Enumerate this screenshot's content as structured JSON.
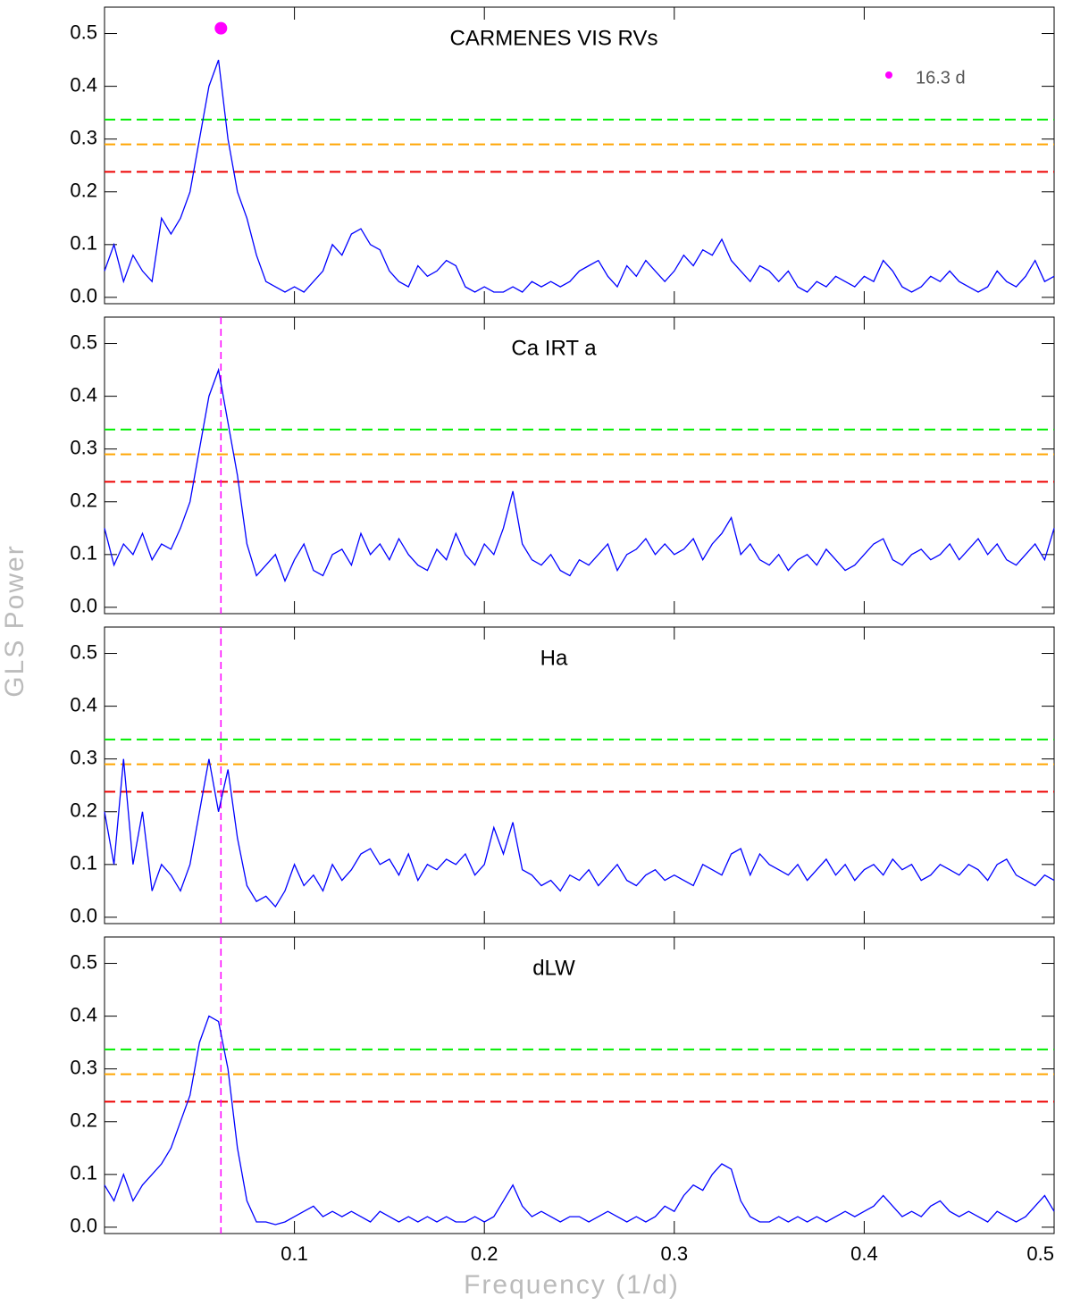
{
  "xlabel": "Frequency (1/d)",
  "ylabel": "GLS Power",
  "chart_data": [
    {
      "type": "line",
      "title": "CARMENES VIS RVs",
      "color": "#0000ff",
      "x": [
        0,
        0.005,
        0.01,
        0.015,
        0.02,
        0.025,
        0.03,
        0.035,
        0.04,
        0.045,
        0.05,
        0.055,
        0.06,
        0.065,
        0.07,
        0.075,
        0.08,
        0.085,
        0.09,
        0.095,
        0.1,
        0.105,
        0.11,
        0.115,
        0.12,
        0.125,
        0.13,
        0.135,
        0.14,
        0.145,
        0.15,
        0.155,
        0.16,
        0.165,
        0.17,
        0.175,
        0.18,
        0.185,
        0.19,
        0.195,
        0.2,
        0.205,
        0.21,
        0.215,
        0.22,
        0.225,
        0.23,
        0.235,
        0.24,
        0.245,
        0.25,
        0.255,
        0.26,
        0.265,
        0.27,
        0.275,
        0.28,
        0.285,
        0.29,
        0.295,
        0.3,
        0.305,
        0.31,
        0.315,
        0.32,
        0.325,
        0.33,
        0.335,
        0.34,
        0.345,
        0.35,
        0.355,
        0.36,
        0.365,
        0.37,
        0.375,
        0.38,
        0.385,
        0.39,
        0.395,
        0.4,
        0.405,
        0.41,
        0.415,
        0.42,
        0.425,
        0.43,
        0.435,
        0.44,
        0.445,
        0.45,
        0.455,
        0.46,
        0.465,
        0.47,
        0.475,
        0.48,
        0.485,
        0.49,
        0.495,
        0.5
      ],
      "values": [
        0.05,
        0.1,
        0.03,
        0.08,
        0.05,
        0.03,
        0.15,
        0.12,
        0.15,
        0.2,
        0.3,
        0.4,
        0.45,
        0.3,
        0.2,
        0.15,
        0.08,
        0.03,
        0.02,
        0.01,
        0.02,
        0.01,
        0.03,
        0.05,
        0.1,
        0.08,
        0.12,
        0.13,
        0.1,
        0.09,
        0.05,
        0.03,
        0.02,
        0.06,
        0.04,
        0.05,
        0.07,
        0.06,
        0.02,
        0.01,
        0.02,
        0.01,
        0.01,
        0.02,
        0.01,
        0.03,
        0.02,
        0.03,
        0.02,
        0.03,
        0.05,
        0.06,
        0.07,
        0.04,
        0.02,
        0.06,
        0.04,
        0.07,
        0.05,
        0.03,
        0.05,
        0.08,
        0.06,
        0.09,
        0.08,
        0.11,
        0.07,
        0.05,
        0.03,
        0.06,
        0.05,
        0.03,
        0.05,
        0.02,
        0.01,
        0.03,
        0.02,
        0.04,
        0.03,
        0.02,
        0.04,
        0.03,
        0.07,
        0.05,
        0.02,
        0.01,
        0.02,
        0.04,
        0.03,
        0.05,
        0.03,
        0.02,
        0.01,
        0.02,
        0.05,
        0.03,
        0.02,
        0.04,
        0.07,
        0.03,
        0.04
      ],
      "hlines": [
        {
          "value": 0.337,
          "color": "#00ee00"
        },
        {
          "value": 0.29,
          "color": "#ffa500"
        },
        {
          "value": 0.238,
          "color": "#ee0000"
        }
      ],
      "marker": {
        "x": 0.0613,
        "y": 0.51,
        "color": "#ff00ff",
        "label": "16.3 d"
      },
      "xlim": [
        0,
        0.5
      ],
      "xticks": [
        0.1,
        0.2,
        0.3,
        0.4,
        0.5
      ],
      "ylim": [
        -0.012,
        0.55
      ],
      "yticks": [
        {
          "value": 0,
          "label": "0.0"
        },
        0.1,
        0.2,
        0.3,
        0.4,
        0.5
      ]
    },
    {
      "type": "line",
      "title": "Ca IRT a",
      "color": "#0000ff",
      "x": [
        0,
        0.005,
        0.01,
        0.015,
        0.02,
        0.025,
        0.03,
        0.035,
        0.04,
        0.045,
        0.05,
        0.055,
        0.06,
        0.065,
        0.07,
        0.075,
        0.08,
        0.085,
        0.09,
        0.095,
        0.1,
        0.105,
        0.11,
        0.115,
        0.12,
        0.125,
        0.13,
        0.135,
        0.14,
        0.145,
        0.15,
        0.155,
        0.16,
        0.165,
        0.17,
        0.175,
        0.18,
        0.185,
        0.19,
        0.195,
        0.2,
        0.205,
        0.21,
        0.215,
        0.22,
        0.225,
        0.23,
        0.235,
        0.24,
        0.245,
        0.25,
        0.255,
        0.26,
        0.265,
        0.27,
        0.275,
        0.28,
        0.285,
        0.29,
        0.295,
        0.3,
        0.305,
        0.31,
        0.315,
        0.32,
        0.325,
        0.33,
        0.335,
        0.34,
        0.345,
        0.35,
        0.355,
        0.36,
        0.365,
        0.37,
        0.375,
        0.38,
        0.385,
        0.39,
        0.395,
        0.4,
        0.405,
        0.41,
        0.415,
        0.42,
        0.425,
        0.43,
        0.435,
        0.44,
        0.445,
        0.45,
        0.455,
        0.46,
        0.465,
        0.47,
        0.475,
        0.48,
        0.485,
        0.49,
        0.495,
        0.5
      ],
      "values": [
        0.15,
        0.08,
        0.12,
        0.1,
        0.14,
        0.09,
        0.12,
        0.11,
        0.15,
        0.2,
        0.3,
        0.4,
        0.45,
        0.35,
        0.25,
        0.12,
        0.06,
        0.08,
        0.1,
        0.05,
        0.09,
        0.12,
        0.07,
        0.06,
        0.1,
        0.11,
        0.08,
        0.14,
        0.1,
        0.12,
        0.09,
        0.13,
        0.1,
        0.08,
        0.07,
        0.11,
        0.09,
        0.14,
        0.1,
        0.08,
        0.12,
        0.1,
        0.15,
        0.22,
        0.12,
        0.09,
        0.08,
        0.1,
        0.07,
        0.06,
        0.09,
        0.08,
        0.1,
        0.12,
        0.07,
        0.1,
        0.11,
        0.13,
        0.1,
        0.12,
        0.1,
        0.11,
        0.13,
        0.09,
        0.12,
        0.14,
        0.17,
        0.1,
        0.12,
        0.09,
        0.08,
        0.1,
        0.07,
        0.09,
        0.1,
        0.08,
        0.11,
        0.09,
        0.07,
        0.08,
        0.1,
        0.12,
        0.13,
        0.09,
        0.08,
        0.1,
        0.11,
        0.09,
        0.1,
        0.12,
        0.09,
        0.11,
        0.13,
        0.1,
        0.12,
        0.09,
        0.08,
        0.1,
        0.12,
        0.09,
        0.15
      ],
      "hlines": [
        {
          "value": 0.337,
          "color": "#00ee00"
        },
        {
          "value": 0.29,
          "color": "#ffa500"
        },
        {
          "value": 0.238,
          "color": "#ee0000"
        }
      ],
      "vline": {
        "x": 0.0613,
        "color": "#ff00ff"
      },
      "xlim": [
        0,
        0.5
      ],
      "xticks": [
        0.1,
        0.2,
        0.3,
        0.4,
        0.5
      ],
      "ylim": [
        -0.012,
        0.55
      ],
      "yticks": [
        {
          "value": 0,
          "label": "0.0"
        },
        0.1,
        0.2,
        0.3,
        0.4,
        0.5
      ]
    },
    {
      "type": "line",
      "title": "Ha",
      "color": "#0000ff",
      "x": [
        0,
        0.005,
        0.01,
        0.015,
        0.02,
        0.025,
        0.03,
        0.035,
        0.04,
        0.045,
        0.05,
        0.055,
        0.06,
        0.065,
        0.07,
        0.075,
        0.08,
        0.085,
        0.09,
        0.095,
        0.1,
        0.105,
        0.11,
        0.115,
        0.12,
        0.125,
        0.13,
        0.135,
        0.14,
        0.145,
        0.15,
        0.155,
        0.16,
        0.165,
        0.17,
        0.175,
        0.18,
        0.185,
        0.19,
        0.195,
        0.2,
        0.205,
        0.21,
        0.215,
        0.22,
        0.225,
        0.23,
        0.235,
        0.24,
        0.245,
        0.25,
        0.255,
        0.26,
        0.265,
        0.27,
        0.275,
        0.28,
        0.285,
        0.29,
        0.295,
        0.3,
        0.305,
        0.31,
        0.315,
        0.32,
        0.325,
        0.33,
        0.335,
        0.34,
        0.345,
        0.35,
        0.355,
        0.36,
        0.365,
        0.37,
        0.375,
        0.38,
        0.385,
        0.39,
        0.395,
        0.4,
        0.405,
        0.41,
        0.415,
        0.42,
        0.425,
        0.43,
        0.435,
        0.44,
        0.445,
        0.45,
        0.455,
        0.46,
        0.465,
        0.47,
        0.475,
        0.48,
        0.485,
        0.49,
        0.495,
        0.5
      ],
      "values": [
        0.2,
        0.1,
        0.3,
        0.1,
        0.2,
        0.05,
        0.1,
        0.08,
        0.05,
        0.1,
        0.2,
        0.3,
        0.2,
        0.28,
        0.15,
        0.06,
        0.03,
        0.04,
        0.02,
        0.05,
        0.1,
        0.06,
        0.08,
        0.05,
        0.1,
        0.07,
        0.09,
        0.12,
        0.13,
        0.1,
        0.11,
        0.08,
        0.12,
        0.07,
        0.1,
        0.09,
        0.11,
        0.1,
        0.12,
        0.08,
        0.1,
        0.17,
        0.12,
        0.18,
        0.09,
        0.08,
        0.06,
        0.07,
        0.05,
        0.08,
        0.07,
        0.09,
        0.06,
        0.08,
        0.1,
        0.07,
        0.06,
        0.08,
        0.09,
        0.07,
        0.08,
        0.07,
        0.06,
        0.1,
        0.09,
        0.08,
        0.12,
        0.13,
        0.08,
        0.12,
        0.1,
        0.09,
        0.08,
        0.1,
        0.07,
        0.09,
        0.11,
        0.08,
        0.1,
        0.07,
        0.09,
        0.1,
        0.08,
        0.11,
        0.09,
        0.1,
        0.07,
        0.08,
        0.1,
        0.09,
        0.08,
        0.1,
        0.09,
        0.07,
        0.1,
        0.11,
        0.08,
        0.07,
        0.06,
        0.08,
        0.07
      ],
      "hlines": [
        {
          "value": 0.337,
          "color": "#00ee00"
        },
        {
          "value": 0.29,
          "color": "#ffa500"
        },
        {
          "value": 0.238,
          "color": "#ee0000"
        }
      ],
      "vline": {
        "x": 0.0613,
        "color": "#ff00ff"
      },
      "xlim": [
        0,
        0.5
      ],
      "xticks": [
        0.1,
        0.2,
        0.3,
        0.4,
        0.5
      ],
      "ylim": [
        -0.012,
        0.55
      ],
      "yticks": [
        {
          "value": 0,
          "label": "0.0"
        },
        0.1,
        0.2,
        0.3,
        0.4,
        0.5
      ]
    },
    {
      "type": "line",
      "title": "dLW",
      "color": "#0000ff",
      "x": [
        0,
        0.005,
        0.01,
        0.015,
        0.02,
        0.025,
        0.03,
        0.035,
        0.04,
        0.045,
        0.05,
        0.055,
        0.06,
        0.065,
        0.07,
        0.075,
        0.08,
        0.085,
        0.09,
        0.095,
        0.1,
        0.105,
        0.11,
        0.115,
        0.12,
        0.125,
        0.13,
        0.135,
        0.14,
        0.145,
        0.15,
        0.155,
        0.16,
        0.165,
        0.17,
        0.175,
        0.18,
        0.185,
        0.19,
        0.195,
        0.2,
        0.205,
        0.21,
        0.215,
        0.22,
        0.225,
        0.23,
        0.235,
        0.24,
        0.245,
        0.25,
        0.255,
        0.26,
        0.265,
        0.27,
        0.275,
        0.28,
        0.285,
        0.29,
        0.295,
        0.3,
        0.305,
        0.31,
        0.315,
        0.32,
        0.325,
        0.33,
        0.335,
        0.34,
        0.345,
        0.35,
        0.355,
        0.36,
        0.365,
        0.37,
        0.375,
        0.38,
        0.385,
        0.39,
        0.395,
        0.4,
        0.405,
        0.41,
        0.415,
        0.42,
        0.425,
        0.43,
        0.435,
        0.44,
        0.445,
        0.45,
        0.455,
        0.46,
        0.465,
        0.47,
        0.475,
        0.48,
        0.485,
        0.49,
        0.495,
        0.5
      ],
      "values": [
        0.08,
        0.05,
        0.1,
        0.05,
        0.08,
        0.1,
        0.12,
        0.15,
        0.2,
        0.25,
        0.35,
        0.4,
        0.39,
        0.3,
        0.15,
        0.05,
        0.01,
        0.01,
        0.005,
        0.01,
        0.02,
        0.03,
        0.04,
        0.02,
        0.03,
        0.02,
        0.03,
        0.02,
        0.01,
        0.03,
        0.02,
        0.01,
        0.02,
        0.01,
        0.02,
        0.01,
        0.02,
        0.01,
        0.01,
        0.02,
        0.01,
        0.02,
        0.05,
        0.08,
        0.04,
        0.02,
        0.03,
        0.02,
        0.01,
        0.02,
        0.02,
        0.01,
        0.02,
        0.03,
        0.02,
        0.01,
        0.02,
        0.01,
        0.02,
        0.04,
        0.03,
        0.06,
        0.08,
        0.07,
        0.1,
        0.12,
        0.11,
        0.05,
        0.02,
        0.01,
        0.01,
        0.02,
        0.01,
        0.02,
        0.01,
        0.02,
        0.01,
        0.02,
        0.03,
        0.02,
        0.03,
        0.04,
        0.06,
        0.04,
        0.02,
        0.03,
        0.02,
        0.04,
        0.05,
        0.03,
        0.02,
        0.03,
        0.02,
        0.01,
        0.03,
        0.02,
        0.01,
        0.02,
        0.04,
        0.06,
        0.03
      ],
      "hlines": [
        {
          "value": 0.337,
          "color": "#00ee00"
        },
        {
          "value": 0.29,
          "color": "#ffa500"
        },
        {
          "value": 0.238,
          "color": "#ee0000"
        }
      ],
      "vline": {
        "x": 0.0613,
        "color": "#ff00ff"
      },
      "xlim": [
        0,
        0.5
      ],
      "xticks": [
        0.1,
        0.2,
        0.3,
        0.4,
        0.5
      ],
      "ylim": [
        -0.012,
        0.55
      ],
      "yticks": [
        {
          "value": 0,
          "label": "0.0"
        },
        0.1,
        0.2,
        0.3,
        0.4,
        0.5
      ]
    }
  ]
}
